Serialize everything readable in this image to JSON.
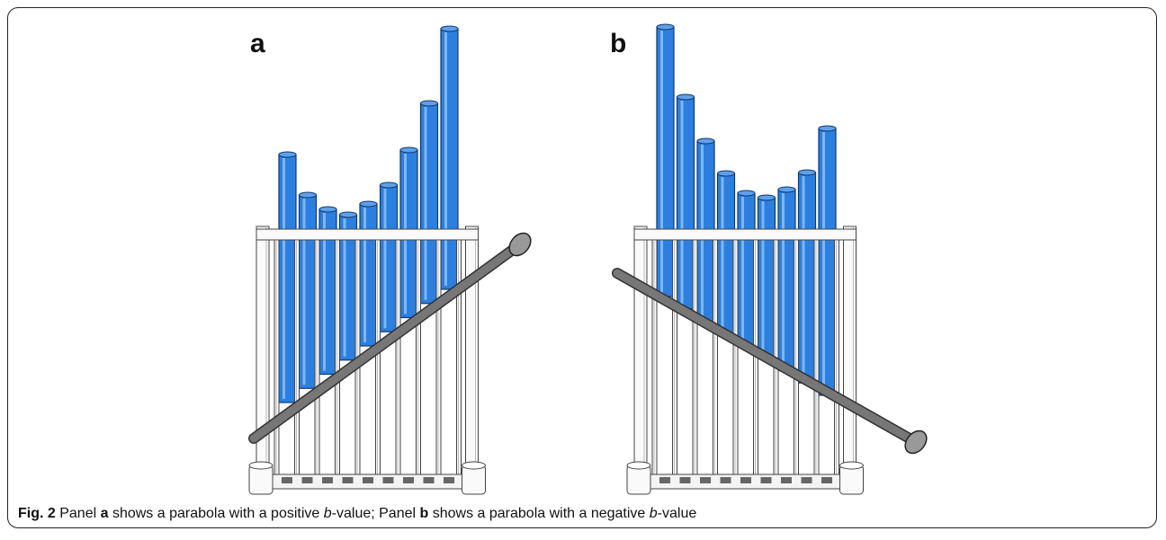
{
  "figure": {
    "panels": [
      {
        "label": "a"
      },
      {
        "label": "b"
      }
    ],
    "caption": {
      "segments": [
        "Fig. 2",
        " Panel ",
        "a",
        " shows a parabola with a positive ",
        "b",
        "-value; Panel ",
        "b",
        " shows a parabola with a negative ",
        "b",
        "-value"
      ]
    }
  }
}
